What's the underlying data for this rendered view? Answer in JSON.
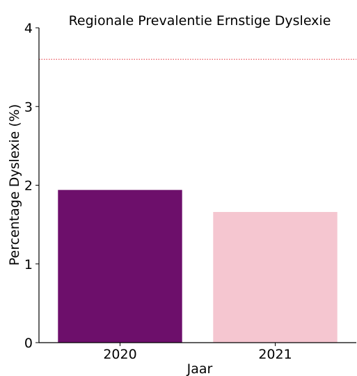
{
  "chart_data": {
    "type": "bar",
    "title": "Regionale Prevalentie Ernstige Dyslexie",
    "xlabel": "Jaar",
    "ylabel": "Percentage Dyslexie (%)",
    "categories": [
      "2020",
      "2021"
    ],
    "values": [
      1.94,
      1.66
    ],
    "bar_colors": [
      "#6d0f6b",
      "#f5c6d0"
    ],
    "ylim": [
      0,
      4
    ],
    "yticks": [
      "0",
      "1",
      "2",
      "3",
      "4"
    ],
    "reference_line": {
      "value": 3.6,
      "color": "#e8464f",
      "style": "dotted"
    },
    "grid": false,
    "legend": "none"
  }
}
